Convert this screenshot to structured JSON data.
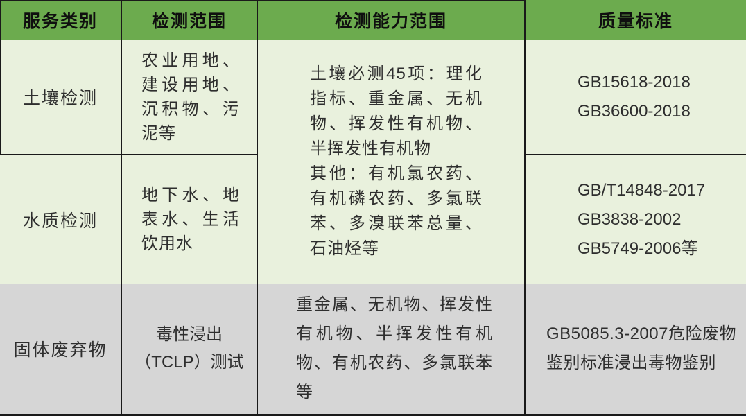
{
  "colors": {
    "header_green": "#6cab4e",
    "row_light_green": "#e9f1dd",
    "row_grey": "#d6d6d6",
    "line_dark": "#1a1a1a"
  },
  "chart_data": {
    "type": "table",
    "columns": [
      "服务类别",
      "检测范围",
      "检测能力范围",
      "质量标准"
    ],
    "layout_hint": "检测能力范围 cell is merged across the 土壤检测 and 水质检测 rows; bottom row has grey background",
    "rows": [
      {
        "service": "土壤检测",
        "scope": "农业用地、建设用地、沉积物、污泥等",
        "capability": [
          "土壤必测45项：理化指标、重金属、无机物、挥发性有机物、半挥发性有机物",
          "其他：有机氯农药、有机磷农药、多氯联苯、多溴联苯总量、石油烃等"
        ],
        "standards": [
          "GB15618-2018",
          "GB36600-2018"
        ]
      },
      {
        "service": "水质检测",
        "scope": "地下水、地表水、生活饮用水",
        "capability": "（与土壤检测合并单元格）",
        "standards": [
          "GB/T14848-2017",
          "GB3838-2002",
          "GB5749-2006等"
        ]
      },
      {
        "service": "固体废弃物",
        "scope_lines": [
          "毒性浸出",
          "（TCLP）测试"
        ],
        "capability": "重金属、无机物、挥发性有机物、半挥发性有机物、有机农药、多氯联苯等",
        "standards": [
          "GB5085.3-2007危险废物鉴别标准浸出毒物鉴别"
        ]
      }
    ]
  }
}
